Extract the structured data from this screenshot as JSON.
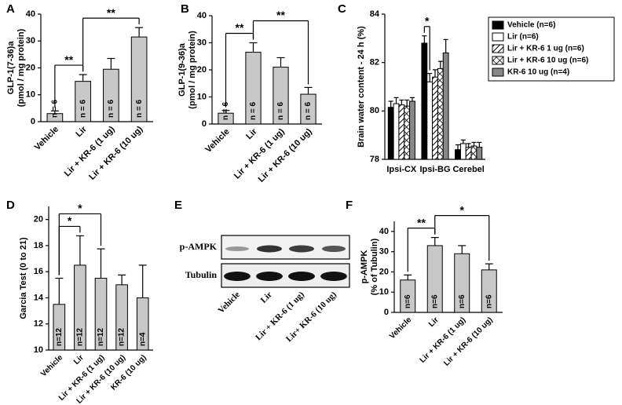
{
  "chart_data": [
    {
      "panel": "A",
      "type": "bar",
      "ylabel": [
        "GLP-1(7-36)a",
        "(pmol / mg protein)"
      ],
      "categories": [
        "Vehicle",
        "Lir",
        "Lir + KR-6 (1 ug)",
        "Lir + KR-6 (10 ug)"
      ],
      "values": [
        3,
        15,
        19.5,
        31.5
      ],
      "errors": [
        1,
        2.5,
        4,
        3.5
      ],
      "n_labels": [
        "n = 6",
        "n = 6",
        "n = 6",
        "n = 6"
      ],
      "color": "#c8c8c8",
      "ylim": [
        0,
        40
      ],
      "yticks": [
        0,
        10,
        20,
        30,
        40
      ],
      "brackets": [
        {
          "from": 0,
          "to": 1,
          "label": "**"
        },
        {
          "from": 1,
          "to": 3,
          "label": "**"
        }
      ]
    },
    {
      "panel": "B",
      "type": "bar",
      "ylabel": [
        "GLP-1(9-36)a",
        "(pmol / mg protein)"
      ],
      "categories": [
        "Vehicle",
        "Lir",
        "Lir + KR-6 (1 ug)",
        "Lir + KR-6 (10 ug)"
      ],
      "values": [
        4,
        26.5,
        21,
        11
      ],
      "errors": [
        1,
        3.5,
        3.5,
        2.5
      ],
      "n_labels": [
        "n = 6",
        "n = 6",
        "n = 6",
        "n = 6"
      ],
      "color": "#c8c8c8",
      "ylim": [
        0,
        40
      ],
      "yticks": [
        0,
        10,
        20,
        30,
        40
      ],
      "brackets": [
        {
          "from": 0,
          "to": 1,
          "label": "**"
        },
        {
          "from": 1,
          "to": 3,
          "label": "**"
        }
      ]
    },
    {
      "panel": "C",
      "type": "grouped_bar",
      "ylabel": "Brain water content - 24 h (%)",
      "categories": [
        "Ipsi-CX",
        "Ipsi-BG",
        "Cerebel"
      ],
      "series": [
        {
          "name": "Vehicle (n=6)",
          "color": "#000000",
          "pattern": "solid",
          "values": [
            80.15,
            82.8,
            78.4
          ],
          "errors": [
            0.25,
            0.3,
            0.2
          ]
        },
        {
          "name": "Lir (n=6)",
          "color": "#ffffff",
          "pattern": "solid",
          "values": [
            80.3,
            81.2,
            78.65
          ],
          "errors": [
            0.25,
            0.35,
            0.15
          ]
        },
        {
          "name": "Lir + KR-6 1 ug (n=6)",
          "color": "#000000",
          "pattern": "hatch",
          "values": [
            80.25,
            81.4,
            78.5
          ],
          "errors": [
            0.2,
            0.3,
            0.15
          ]
        },
        {
          "name": "Lir + KR-6 10 ug (n=6)",
          "color": "#000000",
          "pattern": "cross",
          "values": [
            80.2,
            81.75,
            78.55
          ],
          "errors": [
            0.25,
            0.3,
            0.15
          ]
        },
        {
          "name": "KR-6 10 ug (n=4)",
          "color": "#888888",
          "pattern": "solid",
          "values": [
            80.4,
            82.4,
            78.5
          ],
          "errors": [
            0.15,
            0.55,
            0.2
          ]
        }
      ],
      "ylim": [
        78,
        84
      ],
      "yticks": [
        78,
        80,
        82,
        84
      ],
      "legend": "upper right",
      "brackets": [
        {
          "category": 1,
          "from": 0,
          "to": 1,
          "label": "*"
        }
      ]
    },
    {
      "panel": "D",
      "type": "bar",
      "ylabel": [
        "Garcia Test (0 to 21)"
      ],
      "categories": [
        "Vehicle",
        "Lir",
        "Lir + KR-6 (1 ug)",
        "Lir + KR-6 (10 ug)",
        "KR-6 (10 ug)"
      ],
      "values": [
        13.5,
        16.5,
        15.5,
        15,
        14
      ],
      "errors": [
        2,
        2.25,
        2.25,
        0.75,
        2.5
      ],
      "n_labels": [
        "n=12",
        "n=12",
        "n=12",
        "n=12",
        "n=4"
      ],
      "color": "#c8c8c8",
      "ylim": [
        10,
        21
      ],
      "yticks": [
        10,
        12,
        14,
        16,
        18,
        20
      ],
      "brackets": [
        {
          "from": 0,
          "to": 1,
          "label": "*"
        },
        {
          "from": 0,
          "to": 2,
          "label": "*"
        }
      ]
    },
    {
      "panel": "F",
      "type": "bar",
      "ylabel": [
        "p-AMPK",
        "(% of Tubulin)"
      ],
      "categories": [
        "Vehicle",
        "Lir",
        "Lir + KR-6 (1 ug)",
        "Lir + KR-6 (10 ug)"
      ],
      "values": [
        16,
        33,
        29,
        21
      ],
      "errors": [
        2.5,
        4,
        4,
        3
      ],
      "n_labels": [
        "n=6",
        "n=6",
        "n=6",
        "n=6"
      ],
      "color": "#c8c8c8",
      "ylim": [
        0,
        45
      ],
      "yticks": [
        0,
        10,
        20,
        30,
        40
      ],
      "brackets": [
        {
          "from": 0,
          "to": 1,
          "label": "**"
        },
        {
          "from": 1,
          "to": 3,
          "label": "*"
        }
      ]
    }
  ],
  "blot": {
    "panel": "E",
    "rows": [
      "p-AMPK",
      "Tubulin"
    ],
    "lanes": [
      "Vehicle",
      "Lir",
      "Lir + KR-6 (1 ug)",
      "Lir+ KR-6 (10 ug)"
    ]
  }
}
